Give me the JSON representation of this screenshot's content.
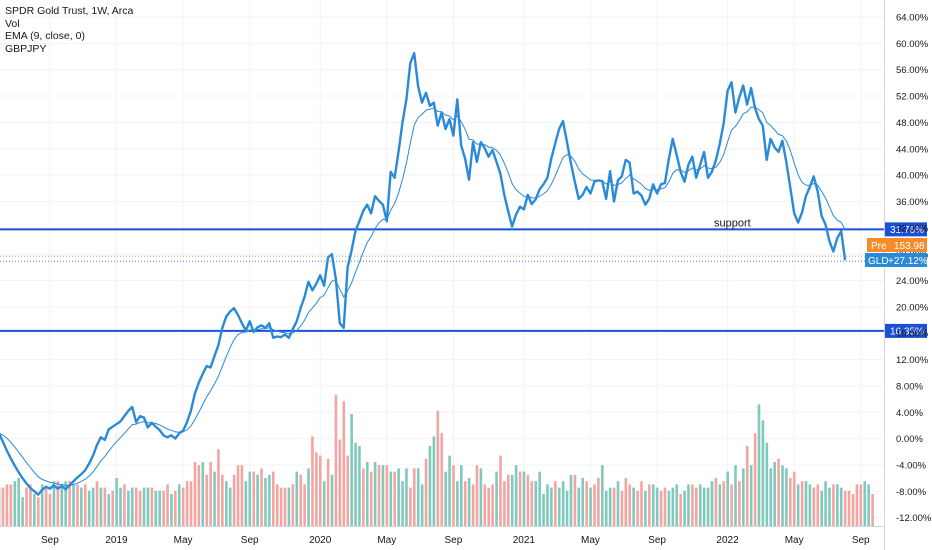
{
  "legend": {
    "symbol": "SPDR Gold Trust, 1W, Arca",
    "vol": "Vol",
    "ema": "EMA (9, close, 0)",
    "compare": "GBPJPY"
  },
  "colors": {
    "line": "#2a8ad8",
    "ema": "#2a8ad8",
    "hline": "#1c4fd6",
    "vol_up": "#80c9bd",
    "vol_down": "#f3a5a2",
    "pre_badge": "#f68b2a",
    "last_badge": "#2a8ad8",
    "grid": "#f0f3fa"
  },
  "chart_data": {
    "type": "line",
    "ylim": [
      -12,
      66
    ],
    "y_ticks": [
      "64.00%",
      "60.00%",
      "56.00%",
      "52.00%",
      "48.00%",
      "44.00%",
      "40.00%",
      "36.00%",
      "32.00%",
      "28.00%",
      "24.00%",
      "20.00%",
      "16.00%",
      "12.00%",
      "8.00%",
      "4.00%",
      "0.00%",
      "-4.00%",
      "-8.00%",
      "-12.00%"
    ],
    "x_ticks": [
      "Sep",
      "2019",
      "May",
      "Sep",
      "2020",
      "May",
      "Sep",
      "2021",
      "May",
      "Sep",
      "2022",
      "May",
      "Sep"
    ],
    "x_tick_weeks": [
      13,
      30,
      47,
      64,
      82,
      99,
      116,
      134,
      151,
      168,
      186,
      203,
      220
    ],
    "series": [
      {
        "name": "GBPJPY",
        "values": [
          0.8,
          -0.5,
          -1.8,
          -3,
          -4.1,
          -5.1,
          -6,
          -6.8,
          -7.5,
          -8,
          -8.5,
          -7.8,
          -7.3,
          -7.6,
          -7.1,
          -7.6,
          -7.2,
          -7.7,
          -7.1,
          -6.5,
          -5.9,
          -5.4,
          -4.8,
          -3.8,
          -2.6,
          -1,
          0.2,
          -0.2,
          1.4,
          1.8,
          2.2,
          2.6,
          3.4,
          4.2,
          4.8,
          2.5,
          3.4,
          3.2,
          1.7,
          2.4,
          1.8,
          1.3,
          0.5,
          0.2,
          0.5,
          0,
          0.8,
          1.2,
          2.5,
          4.2,
          6.8,
          8.5,
          9.8,
          11,
          10.8,
          12.5,
          14.2,
          16.8,
          18.5,
          19.3,
          19.8,
          18.8,
          17.5,
          16.4,
          17.8,
          16.2,
          16.9,
          17.2,
          16.8,
          17.5,
          15.3,
          15.5,
          15.4,
          15.8,
          15.3,
          16.6,
          17.8,
          19.8,
          21.5,
          23.8,
          22.5,
          23.5,
          24.8,
          23.2,
          27.5,
          28,
          24.2,
          17.5,
          16.8,
          26,
          28.5,
          31.5,
          33,
          34.6,
          35.5,
          34.2,
          36.8,
          36.1,
          35.5,
          33,
          40.5,
          39.6,
          43.5,
          48,
          51.5,
          57,
          58.5,
          53.5,
          51,
          52.5,
          50.5,
          51,
          47.5,
          49.5,
          47,
          48.5,
          46,
          51.5,
          44.5,
          42.5,
          39.3,
          45,
          42,
          45,
          44.1,
          42.8,
          43.8,
          42,
          40.2,
          37,
          34.5,
          32.2,
          34,
          35.2,
          34.8,
          37,
          35.6,
          36.3,
          37.8,
          38.6,
          39.6,
          42.5,
          44.8,
          47,
          48.2,
          45,
          41.8,
          39,
          36.4,
          37,
          38.2,
          37.2,
          39,
          39.2,
          39.1,
          36.4,
          40.6,
          36,
          39.2,
          39.8,
          42.3,
          41.9,
          37.2,
          37.5,
          36.9,
          35.5,
          36.4,
          38.6,
          37.2,
          38.6,
          38.8,
          42.4,
          45.5,
          43.1,
          40.5,
          39,
          41.6,
          42.8,
          39.6,
          41.5,
          43.5,
          39.6,
          40.5,
          42.2,
          44.7,
          47.8,
          52.8,
          54.1,
          49.5,
          51.8,
          53.6,
          50.7,
          53.2,
          50.2,
          48.5,
          47.5,
          42.3,
          45.5,
          44.2,
          43.5,
          45.2,
          42,
          38.2,
          34.2,
          32.8,
          34.3,
          36.8,
          38.2,
          39.8,
          37.5,
          33.8,
          32.5,
          30,
          28.4,
          30.4,
          31.5,
          27.1
        ],
        "vol": [
          12,
          12,
          13,
          13,
          14,
          15,
          9,
          12,
          13,
          10,
          9,
          13,
          12,
          10,
          14,
          14,
          12,
          14,
          14,
          13,
          13,
          12,
          13,
          11,
          12,
          14,
          12,
          12,
          10,
          11,
          15,
          12,
          13,
          11,
          12,
          12,
          11,
          12,
          12,
          12,
          11,
          11,
          11,
          13,
          10,
          11,
          13,
          12,
          14,
          14,
          20,
          19,
          20,
          16,
          20,
          17,
          24,
          16,
          14,
          12,
          16,
          19,
          19,
          14,
          17,
          17,
          16,
          18,
          15,
          16,
          17,
          13,
          12,
          12,
          12,
          13,
          17,
          16,
          13,
          18,
          28,
          23,
          22,
          14,
          21,
          16,
          41,
          27,
          39,
          22,
          35,
          26,
          25,
          18,
          20,
          17,
          20,
          19,
          19,
          19,
          17,
          17,
          18,
          14,
          18,
          12,
          18,
          18,
          13,
          21,
          25,
          28,
          36,
          29,
          17,
          22,
          19,
          14,
          19,
          14,
          15,
          13,
          19,
          18,
          13,
          12,
          13,
          17,
          22,
          14,
          16,
          16,
          19,
          17,
          17,
          16,
          14,
          14,
          17,
          10,
          13,
          12,
          14,
          12,
          14,
          11,
          16,
          16,
          12,
          15,
          14,
          12,
          13,
          15,
          19,
          11,
          12,
          12,
          14,
          11,
          15,
          13,
          12,
          11,
          14,
          11,
          13,
          13,
          12,
          11,
          12,
          11,
          12,
          13,
          10,
          11,
          13,
          13,
          12,
          13,
          12,
          12,
          14,
          15,
          13,
          14,
          17,
          13,
          19,
          14,
          18,
          25,
          19,
          29,
          38,
          33,
          26,
          18,
          20,
          21,
          19,
          18,
          15,
          17,
          13,
          14,
          14,
          13,
          12,
          13,
          11,
          14,
          12,
          13,
          13,
          12,
          11,
          11,
          10,
          13,
          13,
          14,
          13,
          10
        ],
        "vol_up": [
          true,
          false,
          false,
          false,
          true,
          true,
          true,
          false,
          false,
          true,
          false,
          true,
          false,
          false,
          true,
          false,
          true,
          true,
          false,
          true,
          false,
          true,
          false,
          true,
          true,
          false,
          true,
          false,
          true,
          false,
          true,
          true,
          false,
          true,
          true,
          false,
          false,
          true,
          true,
          false,
          true,
          true,
          false,
          false,
          true,
          false,
          true,
          false,
          false,
          false,
          false,
          false,
          true,
          false,
          false,
          true,
          false,
          false,
          true,
          true,
          false,
          false,
          false,
          true,
          true,
          false,
          true,
          false,
          true,
          true,
          false,
          false,
          false,
          false,
          true,
          false,
          true,
          false,
          false,
          true,
          false,
          false,
          false,
          true,
          false,
          true,
          false,
          false,
          false,
          false,
          true,
          true,
          true,
          false,
          true,
          false,
          true,
          false,
          true,
          false,
          true,
          false,
          true,
          true,
          true,
          false,
          false,
          true,
          true,
          false,
          true,
          true,
          false,
          false,
          true,
          true,
          false,
          true,
          true,
          false,
          true,
          false,
          false,
          true,
          false,
          false,
          false,
          true,
          false,
          false,
          false,
          true,
          true,
          false,
          true,
          false,
          false,
          true,
          true,
          true,
          true,
          true,
          false,
          true,
          true,
          true,
          true,
          false,
          true,
          true,
          false,
          true,
          false,
          false,
          true,
          true,
          true,
          false,
          true,
          false,
          false,
          false,
          true,
          false,
          false,
          true,
          false,
          true,
          true,
          false,
          false,
          true,
          true,
          true,
          false,
          true,
          true,
          false,
          false,
          true,
          true,
          true,
          true,
          false,
          true,
          false,
          true,
          false,
          true,
          false,
          true,
          false,
          true,
          false,
          true,
          true,
          true,
          true,
          true,
          false,
          true,
          true,
          false,
          false,
          true,
          false,
          true,
          true,
          false,
          false,
          true,
          true,
          true,
          false,
          true,
          true,
          false,
          false,
          false,
          false,
          false,
          true,
          true,
          false
        ]
      }
    ],
    "hlines": [
      {
        "value": 31.76,
        "label": "31.76%"
      },
      {
        "value": 16.35,
        "label": "16.35%"
      }
    ],
    "annotation": "support",
    "badges": {
      "pre_label": "Pre",
      "pre_value": "153.98",
      "last_label": "GLD",
      "last_value": "+27.12%"
    }
  }
}
